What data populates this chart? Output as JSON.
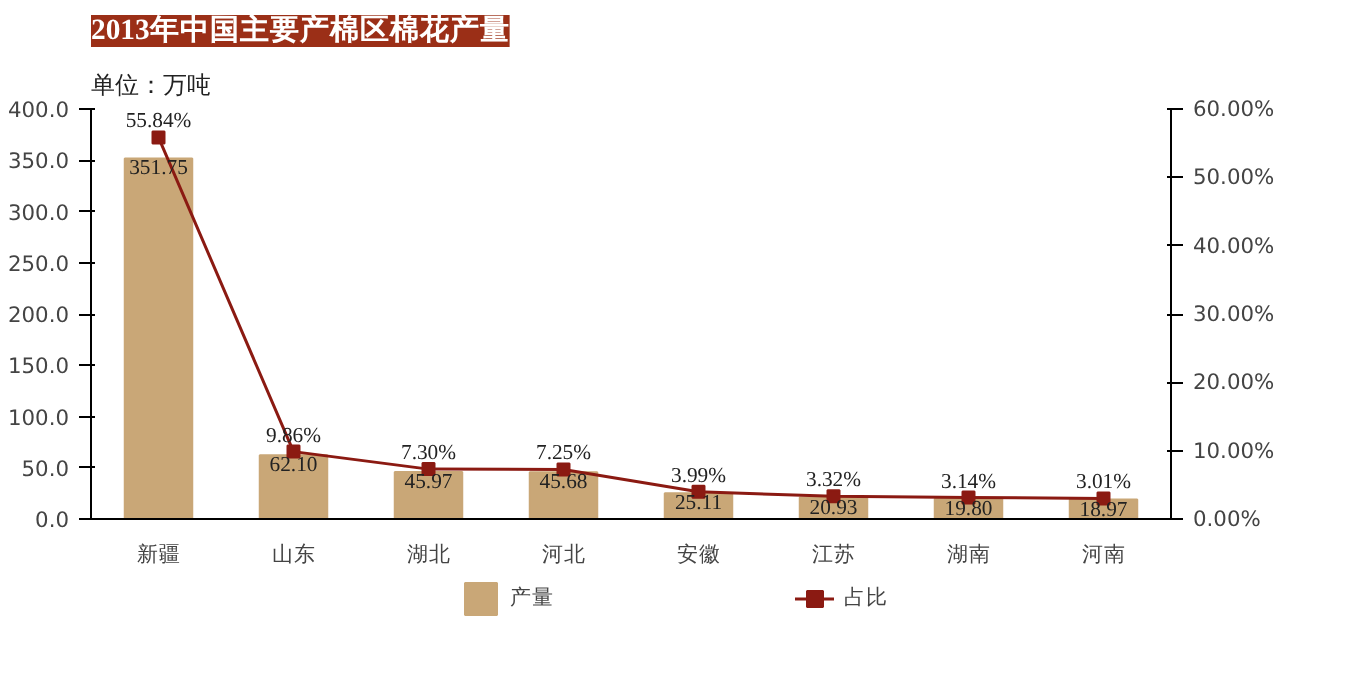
{
  "chart_data": {
    "type": "bar",
    "title": "2013年中国主要产棉区棉花产量",
    "subtitle": "单位：万吨",
    "categories": [
      "新疆",
      "山东",
      "湖北",
      "河北",
      "安徽",
      "江苏",
      "湖南",
      "河南"
    ],
    "series": [
      {
        "name": "产量",
        "color": "#c9a777",
        "values": [
          351.75,
          62.1,
          45.97,
          45.68,
          25.11,
          20.93,
          19.8,
          18.97
        ],
        "value_labels": [
          "351.75",
          "62.10",
          "45.97",
          "45.68",
          "25.11",
          "20.93",
          "19.80",
          "18.97"
        ]
      },
      {
        "name": "占比",
        "type": "line",
        "axis": "y2",
        "color": "#8b1a12",
        "marker": "square",
        "values": [
          55.84,
          9.86,
          7.3,
          7.25,
          3.99,
          3.32,
          3.14,
          3.01
        ],
        "value_labels": [
          "55.84%",
          "9.86%",
          "7.30%",
          "7.25%",
          "3.99%",
          "3.32%",
          "3.14%",
          "3.01%"
        ]
      }
    ],
    "ylim": [
      0,
      400
    ],
    "yticks": [
      {
        "value": 0,
        "label": "0.0"
      },
      {
        "value": 50,
        "label": "50.0"
      },
      {
        "value": 100,
        "label": "100.0"
      },
      {
        "value": 150,
        "label": "150.0"
      },
      {
        "value": 200,
        "label": "200.0"
      },
      {
        "value": 250,
        "label": "250.0"
      },
      {
        "value": 300,
        "label": "300.0"
      },
      {
        "value": 350,
        "label": "350.0"
      },
      {
        "value": 400,
        "label": "400.0"
      }
    ],
    "y2lim": [
      0,
      60
    ],
    "y2ticks": [
      {
        "value": 0,
        "label": "0.00%"
      },
      {
        "value": 10,
        "label": "10.00%"
      },
      {
        "value": 20,
        "label": "20.00%"
      },
      {
        "value": 30,
        "label": "30.00%"
      },
      {
        "value": 40,
        "label": "40.00%"
      },
      {
        "value": 50,
        "label": "50.00%"
      },
      {
        "value": 60,
        "label": "60.00%"
      }
    ],
    "grid": false,
    "legend": "bottom"
  }
}
